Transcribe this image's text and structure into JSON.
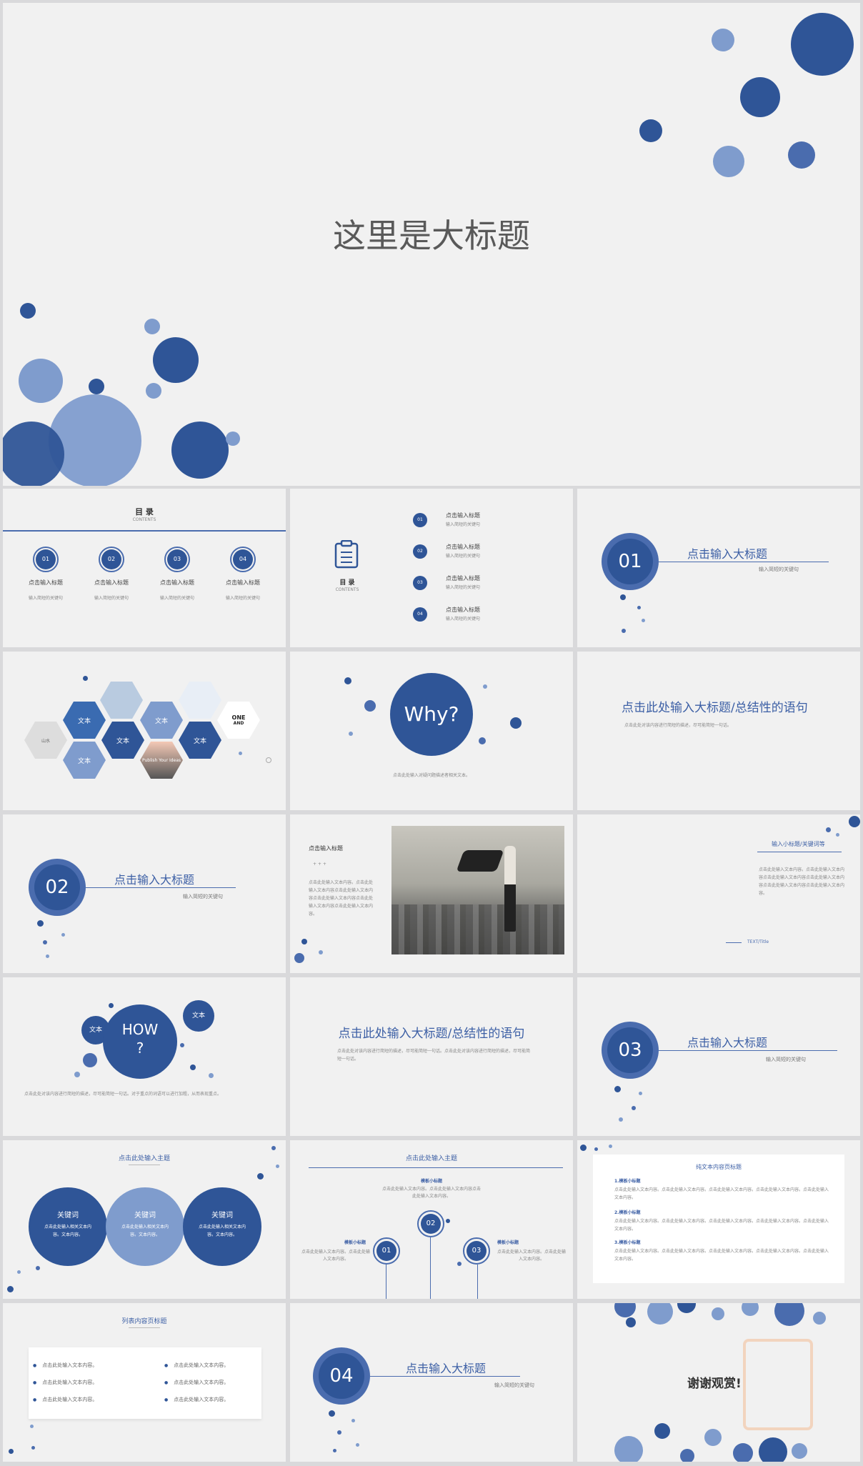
{
  "cover": {
    "title": "这里是大标题"
  },
  "s1": {
    "title": "目 录",
    "sub": "CONTENTS",
    "items": [
      {
        "num": "01",
        "label": "点击输入标题",
        "desc": "输入简短的关键句"
      },
      {
        "num": "02",
        "label": "点击输入标题",
        "desc": "输入简短的关键句"
      },
      {
        "num": "03",
        "label": "点击输入标题",
        "desc": "输入简短的关键句"
      },
      {
        "num": "04",
        "label": "点击输入标题",
        "desc": "输入简短的关键句"
      }
    ]
  },
  "s2": {
    "title": "目 录",
    "sub": "CONTENTS",
    "items": [
      {
        "num": "01",
        "label": "点击输入标题",
        "desc": "输入简短的关键句"
      },
      {
        "num": "02",
        "label": "点击输入标题",
        "desc": "输入简短的关键句"
      },
      {
        "num": "03",
        "label": "点击输入标题",
        "desc": "输入简短的关键句"
      },
      {
        "num": "04",
        "label": "点击输入标题",
        "desc": "输入简短的关键句"
      }
    ]
  },
  "s3": {
    "num": "01",
    "title": "点击输入大标题",
    "sub": "输入简短的关键句"
  },
  "s4": {
    "hex": [
      "文本",
      "文本",
      "文本",
      "文本",
      "文本"
    ],
    "img_text": [
      "ONE",
      "AND",
      "Publish Your Ideas"
    ]
  },
  "s5": {
    "title": "Why?",
    "desc": "点击此处输入对疑问题描述者相关文本。"
  },
  "s6": {
    "title": "点击此处输入大标题/总结性的语句",
    "desc": "点击此处对该内容进行简短的描述，尽可能简短一句话。"
  },
  "s7": {
    "num": "02",
    "title": "点击输入大标题",
    "sub": "输入简短的关键句"
  },
  "s8": {
    "title": "点击输入标题",
    "dots": "+ + +",
    "body": "点击此处输入文本内容。点击此处输入文本内容点击此处输入文本内容点击此处输入文本内容点击此处输入文本内容点击此处输入文本内容。"
  },
  "s9": {
    "title": "输入小标题/关键词等",
    "body": "点击此处输入文本内容。点击此处输入文本内容点击此处输入文本内容点击此处输入文本内容点击此处输入文本内容点击此处输入文本内容。",
    "tag": "TEXT/Title"
  },
  "s10": {
    "title": "HOW ?",
    "t1": "文本",
    "t2": "文本",
    "desc": "点击此处对该内容进行简短的描述，尽可能简短一句话。对于重点的词语可以进行加粗，从而表现重点。"
  },
  "s11": {
    "title": "点击此处输入大标题/总结性的语句",
    "desc": "点击此处对该内容进行简短的描述，尽可能简短一句话。点击此处对该内容进行简短的描述，尽可能简短一句话。"
  },
  "s12": {
    "num": "03",
    "title": "点击输入大标题",
    "sub": "输入简短的关键句"
  },
  "s13": {
    "title": "点击此处输入主题",
    "items": [
      {
        "k": "关键词",
        "d": "点击此处输入相关文本内容。文本内容。"
      },
      {
        "k": "关键词",
        "d": "点击此处输入相关文本内容。文本内容。"
      },
      {
        "k": "关键词",
        "d": "点击此处输入相关文本内容。文本内容。"
      }
    ]
  },
  "s14": {
    "title": "点击此处输入主题",
    "items": [
      {
        "num": "01",
        "h": "模板小标题",
        "d": "点击此处输入文本内容。点击此处输入文本内容。"
      },
      {
        "num": "02",
        "h": "模板小标题",
        "d": "点击此处输入文本内容。点击此处输入文本内容点击此处输入文本内容。"
      },
      {
        "num": "03",
        "h": "模板小标题",
        "d": "点击此处输入文本内容。点击此处输入文本内容。"
      }
    ]
  },
  "s15": {
    "title": "纯文本内容页标题",
    "items": [
      {
        "h": "1.模板小标题",
        "d": "点击此处输入文本内容。点击此处输入文本内容。点击此处输入文本内容。点击此处输入文本内容。点击此处输入文本内容。"
      },
      {
        "h": "2.模板小标题",
        "d": "点击此处输入文本内容。点击此处输入文本内容。点击此处输入文本内容。点击此处输入文本内容。点击此处输入文本内容。"
      },
      {
        "h": "3.模板小标题",
        "d": "点击此处输入文本内容。点击此处输入文本内容。点击此处输入文本内容。点击此处输入文本内容。点击此处输入文本内容。"
      }
    ]
  },
  "s16": {
    "title": "列表内容页标题",
    "items": [
      "点击此处输入文本内容。",
      "点击此处输入文本内容。",
      "点击此处输入文本内容。",
      "点击此处输入文本内容。",
      "点击此处输入文本内容。",
      "点击此处输入文本内容。"
    ]
  },
  "s17": {
    "num": "04",
    "title": "点击输入大标题",
    "sub": "输入简短的关键句"
  },
  "s18": {
    "title": "谢谢观赏!"
  },
  "colors": {
    "dark": "#2f5597",
    "mid": "#4a6cae",
    "light": "#7f9ccd",
    "bg": "#f1f1f1"
  }
}
